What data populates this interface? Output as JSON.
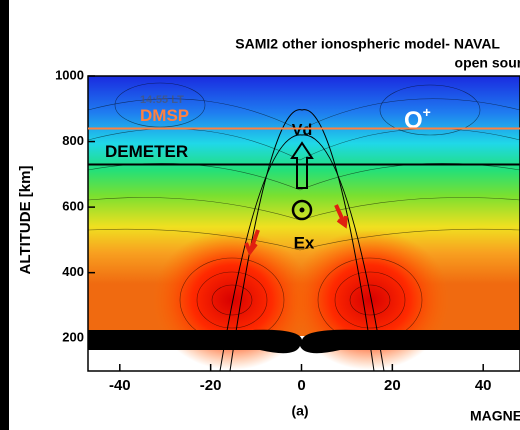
{
  "chart_data": {
    "type": "contour",
    "title": "SAMI2 other ionospheric model- NAVAL",
    "subtitle": "open sourc",
    "y_label": "ALTITUDE  [km]",
    "x_label": "MAGNETIC",
    "panel_label": "(a)",
    "time_label": "14:55 LT",
    "species": {
      "text": "O",
      "sup": "+"
    },
    "annotations": [
      "Vd",
      "Ex"
    ],
    "lines": [
      {
        "name": "DMSP",
        "value": 840,
        "color": "#ff8040"
      },
      {
        "name": "DEMETER",
        "value": 730,
        "color": "#000000"
      }
    ],
    "xlim": [
      -47,
      47
    ],
    "xticks": [
      -40,
      -20,
      0,
      20,
      40
    ],
    "ylim": [
      100,
      1000
    ],
    "yticks": [
      200,
      400,
      600,
      800,
      1000
    ]
  }
}
